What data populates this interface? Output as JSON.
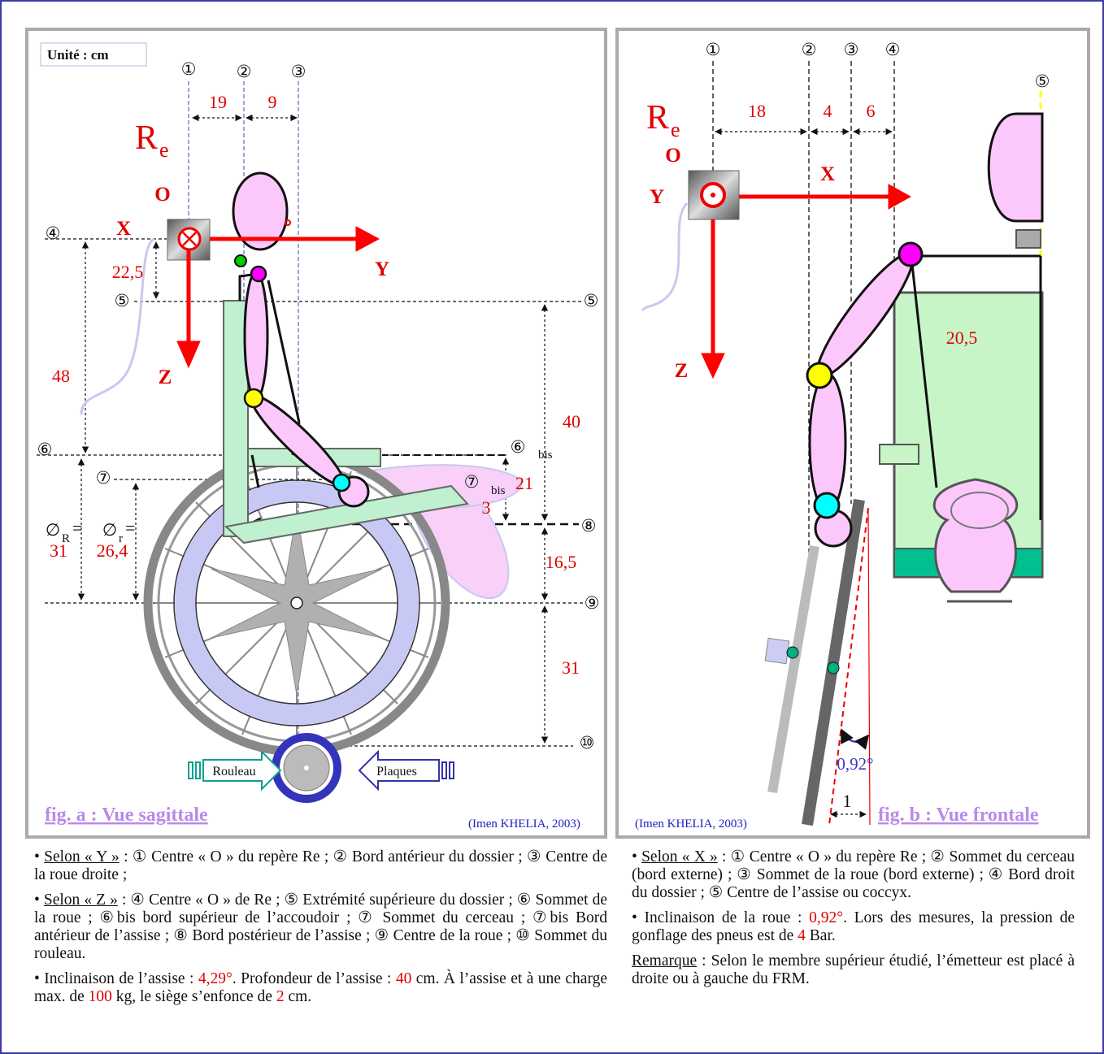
{
  "figure_a": {
    "labels": [
      "Unité : cm",
      "①",
      "②",
      "③",
      "19",
      "9",
      "R",
      "e",
      "O",
      "X",
      "Y",
      "Z",
      "④",
      "22,5",
      "⑤",
      "⑤",
      "48",
      "40",
      "⑥",
      "⑥",
      "bis",
      "⑦",
      "⑦",
      "bis",
      "21",
      "3",
      "⑧",
      "∅",
      "R",
      "=",
      "∅",
      "r",
      "=",
      "31",
      "26,4",
      "16,5",
      "⑨",
      "31",
      "⑩",
      "Rouleau",
      "Plaques",
      "fig. a : Vue sagittale",
      "(Imen KHELIA, 2003)"
    ]
  },
  "figure_b": {
    "labels": [
      "①",
      "②",
      "③",
      "④",
      "⑤",
      "18",
      "4",
      "6",
      "R",
      "e",
      "O",
      "X",
      "Y",
      "Z",
      "20,5",
      "0,92°",
      "1",
      "fig. b : Vue frontale",
      "(Imen KHELIA, 2003)"
    ]
  },
  "notes_left": [
    {
      "bullet": "•",
      "lead": "Selon « Y »",
      "text": " : ① Centre « O » du repère Re ; ② Bord antérieur du dossier ; ③ Centre de la roue droite ;"
    },
    {
      "bullet": "•",
      "lead": "Selon « Z »",
      "text": " : ④ Centre « O » de Re ; ⑤ Extrémité supérieure du dossier ; ⑥ Sommet de la roue ; ⑥bis bord supérieur de l’accoudoir ; ⑦ Sommet du cerceau ; ⑦bis Bord antérieur de l’assise ; ⑧ Bord postérieur de l’assise ; ⑨ Centre de la roue ; ⑩ Sommet du rouleau."
    },
    {
      "bullet": "•",
      "parts": [
        " Inclinaison de l’assise : ",
        "4,29°",
        ". Profondeur de l’assise : ",
        "40",
        " cm. À l’assise et à une charge max. de ",
        "100",
        " kg, le siège s’enfonce de ",
        "2",
        " cm."
      ]
    }
  ],
  "notes_right": [
    {
      "bullet": "•",
      "lead": "Selon « X »",
      "text": " : ① Centre « O » du repère Re ; ② Sommet du cerceau (bord externe) ; ③ Sommet de la roue (bord externe) ; ④ Bord droit du dossier ; ⑤ Centre de l’assise ou coccyx."
    },
    {
      "bullet": "•",
      "parts": [
        " Inclinaison de la roue : ",
        "0,92°",
        ". Lors des mesures, la pression de gonflage des pneus est de ",
        "4",
        " Bar."
      ]
    },
    {
      "lead": "Remarque",
      "text": " : Selon le membre supérieur étudié, l’émetteur est placé à droite ou à gauche du FRM."
    }
  ]
}
